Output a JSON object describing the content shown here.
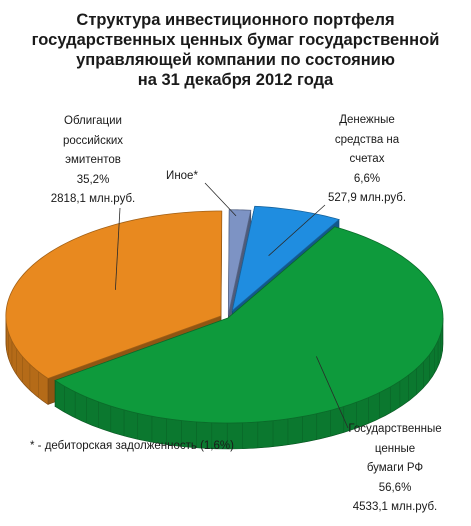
{
  "chart_data": {
    "type": "pie",
    "title_lines": [
      "Структура инвестиционного портфеля",
      "государственных ценных бумаг государственной",
      "управляющей компании по состоянию",
      "на 31 декабря 2012 года"
    ],
    "slices": [
      {
        "name_lines": [
          "Денежные",
          "средства на",
          "счетах"
        ],
        "percent_label": "6,6%",
        "amount_label": "527,9 млн.руб.",
        "value": 6.6,
        "color": "#1f8de0"
      },
      {
        "name_lines": [
          "Государственные",
          "ценные",
          "бумаги РФ"
        ],
        "percent_label": "56,6%",
        "amount_label": "4533,1 млн.руб.",
        "value": 56.6,
        "color": "#0e9a3c"
      },
      {
        "name_lines": [
          "Облигации",
          "российских",
          "эмитентов"
        ],
        "percent_label": "35,2%",
        "amount_label": "2818,1 млн.руб.",
        "value": 35.2,
        "color": "#e8891f"
      },
      {
        "name_lines": [
          "Иное*"
        ],
        "percent_label": "",
        "amount_label": "",
        "value": 1.6,
        "color": "#7d93c4"
      }
    ],
    "footnote": "*  -  дебиторская задолженность (1,6%)"
  }
}
